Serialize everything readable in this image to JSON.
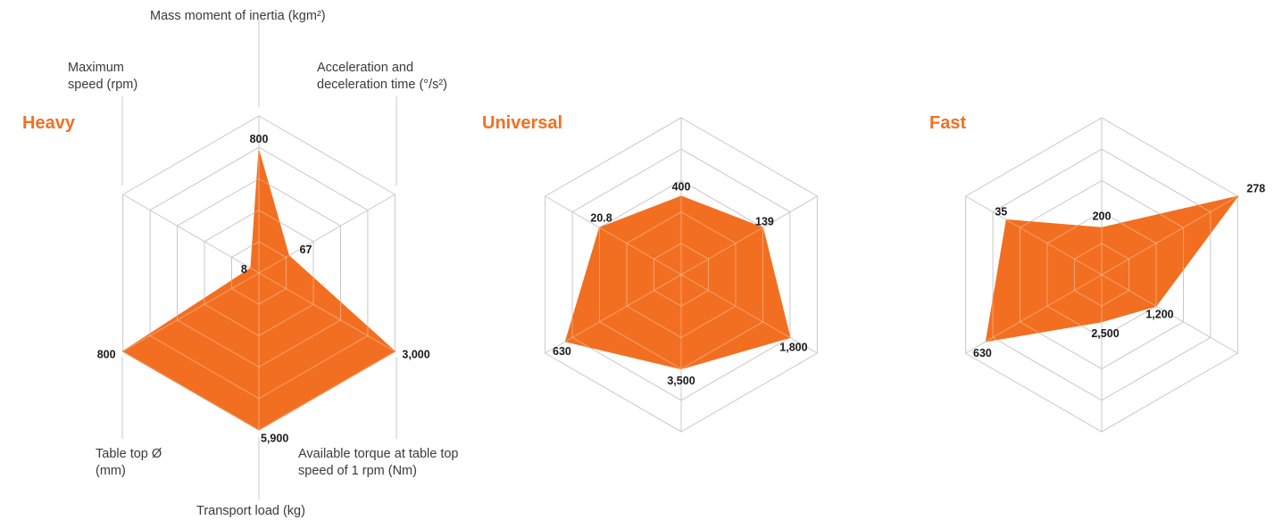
{
  "accent_color": "#f26f21",
  "grid_color": "#c8c8c8",
  "axis_labels": {
    "mass_moment": [
      "Mass moment of inertia (kgm²)"
    ],
    "acceleration": [
      "Acceleration and",
      "deceleration time (°/s²)"
    ],
    "torque": [
      "Available torque at table top",
      "speed of 1 rpm (Nm)"
    ],
    "transport_load": [
      "Transport load (kg)"
    ],
    "table_top": [
      "Table top Ø",
      "(mm)"
    ],
    "max_speed": [
      "Maximum",
      "speed (rpm)"
    ]
  },
  "chart_data": [
    {
      "type": "radar",
      "title": "Heavy",
      "axes": [
        "Mass moment of inertia (kgm²)",
        "Acceleration and deceleration time (°/s²)",
        "Available torque at table top speed of 1 rpm (Nm)",
        "Transport load (kg)",
        "Table top Ø (mm)",
        "Maximum speed (rpm)"
      ],
      "values": [
        800,
        67,
        3000,
        5900,
        800,
        8
      ],
      "labels": [
        "800",
        "67",
        "3,000",
        "5,900",
        "800",
        "8"
      ],
      "relative_levels": [
        0.78,
        0.22,
        1.0,
        1.0,
        1.0,
        0.06
      ],
      "grid_rings": 5
    },
    {
      "type": "radar",
      "title": "Universal",
      "axes": [
        "Mass moment of inertia (kgm²)",
        "Acceleration and deceleration time (°/s²)",
        "Available torque at table top speed of 1 rpm (Nm)",
        "Transport load (kg)",
        "Table top Ø (mm)",
        "Maximum speed (rpm)"
      ],
      "values": [
        400,
        139,
        1800,
        3500,
        630,
        20.8
      ],
      "labels": [
        "400",
        "139",
        "1,800",
        "3,500",
        "630",
        "20.8"
      ],
      "relative_levels": [
        0.5,
        0.6,
        0.8,
        0.6,
        0.85,
        0.6
      ],
      "grid_rings": 5
    },
    {
      "type": "radar",
      "title": "Fast",
      "axes": [
        "Mass moment of inertia (kgm²)",
        "Acceleration and deceleration time (°/s²)",
        "Available torque at table top speed of 1 rpm (Nm)",
        "Transport load (kg)",
        "Table top Ø (mm)",
        "Maximum speed (rpm)"
      ],
      "values": [
        200,
        278,
        1200,
        2500,
        630,
        35
      ],
      "labels": [
        "200",
        "278",
        "1,200",
        "2,500",
        "630",
        "35"
      ],
      "relative_levels": [
        0.3,
        1.0,
        0.4,
        0.3,
        0.85,
        0.7
      ],
      "grid_rings": 5
    }
  ]
}
